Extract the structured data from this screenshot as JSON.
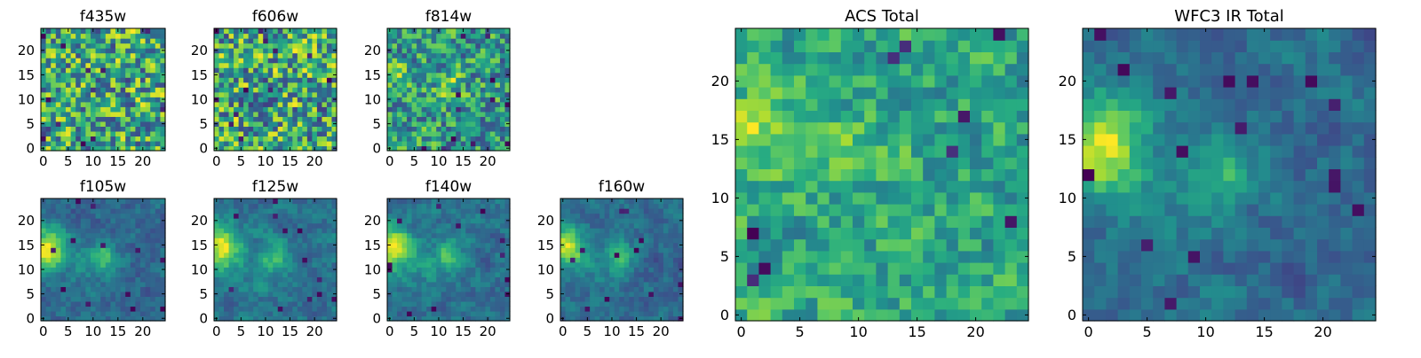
{
  "chart_data": {
    "type": "heatmap",
    "grid": [
      25,
      25
    ],
    "colormap": "viridis",
    "colors": {
      "low": "#440154",
      "mid_low": "#31688e",
      "mid": "#35b779",
      "high": "#fde725",
      "frame": "#000000"
    },
    "panels": [
      {
        "title": "f435w",
        "xticks": [
          "0",
          "5",
          "10",
          "15",
          "20"
        ],
        "yticks": [
          "0",
          "5",
          "10",
          "15",
          "20"
        ],
        "xlim": [
          0,
          25
        ],
        "ylim": [
          0,
          25
        ],
        "style": "acs"
      },
      {
        "title": "f606w",
        "xticks": [
          "0",
          "5",
          "10",
          "15",
          "20"
        ],
        "yticks": [
          "0",
          "5",
          "10",
          "15",
          "20"
        ],
        "xlim": [
          0,
          25
        ],
        "ylim": [
          0,
          25
        ],
        "style": "acs"
      },
      {
        "title": "f814w",
        "xticks": [
          "0",
          "5",
          "10",
          "15",
          "20"
        ],
        "yticks": [
          "0",
          "5",
          "10",
          "15",
          "20"
        ],
        "xlim": [
          0,
          25
        ],
        "ylim": [
          0,
          25
        ],
        "style": "acs_src"
      },
      {
        "title": "f105w",
        "xticks": [
          "0",
          "5",
          "10",
          "15",
          "20"
        ],
        "yticks": [
          "0",
          "5",
          "10",
          "15",
          "20"
        ],
        "xlim": [
          0,
          25
        ],
        "ylim": [
          0,
          25
        ],
        "style": "ir"
      },
      {
        "title": "f125w",
        "xticks": [
          "0",
          "5",
          "10",
          "15",
          "20"
        ],
        "yticks": [
          "0",
          "5",
          "10",
          "15",
          "20"
        ],
        "xlim": [
          0,
          25
        ],
        "ylim": [
          0,
          25
        ],
        "style": "ir"
      },
      {
        "title": "f140w",
        "xticks": [
          "0",
          "5",
          "10",
          "15",
          "20"
        ],
        "yticks": [
          "0",
          "5",
          "10",
          "15",
          "20"
        ],
        "xlim": [
          0,
          25
        ],
        "ylim": [
          0,
          25
        ],
        "style": "ir"
      },
      {
        "title": "f160w",
        "xticks": [
          "0",
          "5",
          "10",
          "15",
          "20"
        ],
        "yticks": [
          "0",
          "5",
          "10",
          "15",
          "20"
        ],
        "xlim": [
          0,
          25
        ],
        "ylim": [
          0,
          25
        ],
        "style": "ir"
      },
      {
        "title": "ACS Total",
        "xticks": [
          "0",
          "5",
          "10",
          "15",
          "20"
        ],
        "yticks": [
          "0",
          "5",
          "10",
          "15",
          "20"
        ],
        "xlim": [
          0,
          25
        ],
        "ylim": [
          0,
          25
        ],
        "style": "acs_total"
      },
      {
        "title": "WFC3 IR Total",
        "xticks": [
          "0",
          "5",
          "10",
          "15",
          "20"
        ],
        "yticks": [
          "0",
          "5",
          "10",
          "15",
          "20"
        ],
        "xlim": [
          0,
          25
        ],
        "ylim": [
          0,
          25
        ],
        "style": "ir_total"
      }
    ]
  }
}
